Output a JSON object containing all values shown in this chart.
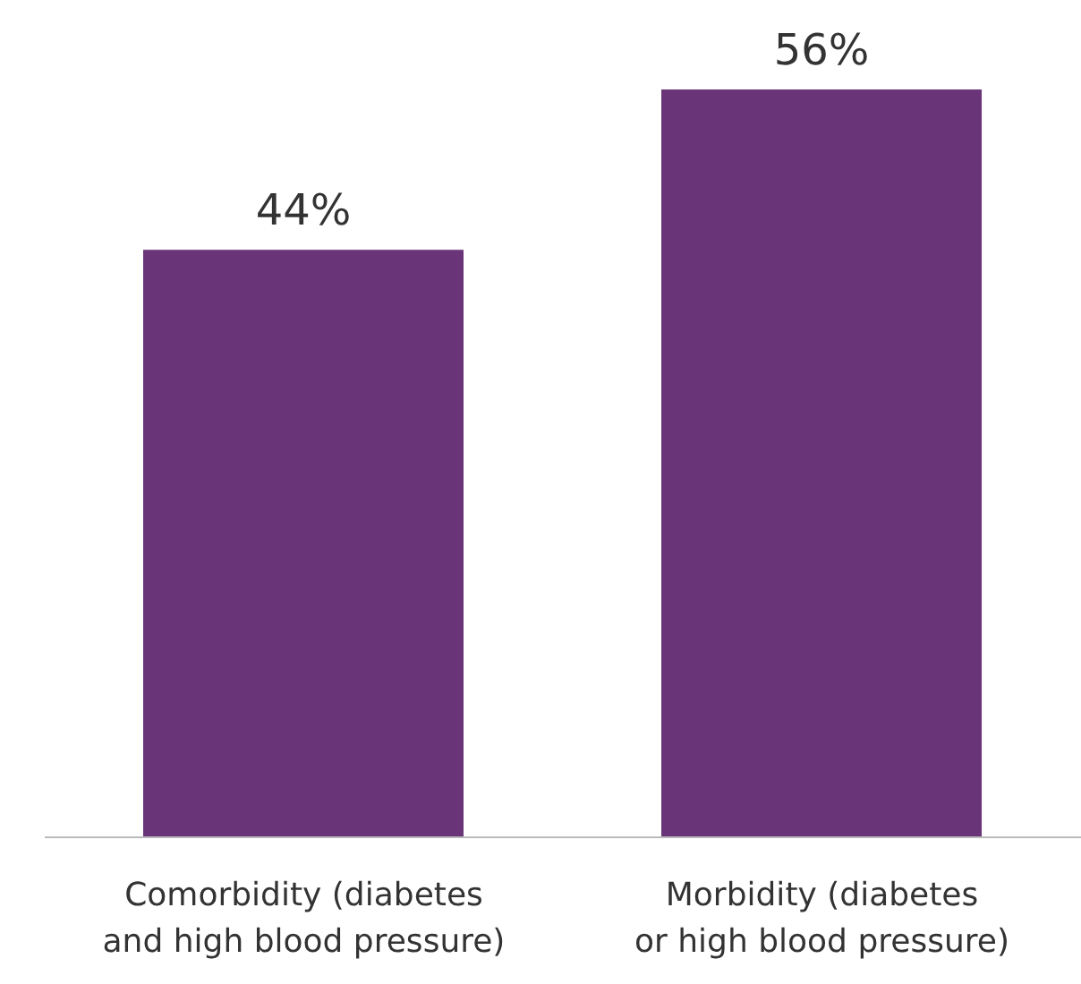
{
  "chart_data": {
    "type": "bar",
    "categories": [
      "Comorbidity (diabetes and high blood pressure)",
      "Morbidity (diabetes or high blood pressure)"
    ],
    "values": [
      44,
      56
    ],
    "color": "#6a3578",
    "value_labels": [
      "44%",
      "56%"
    ]
  }
}
